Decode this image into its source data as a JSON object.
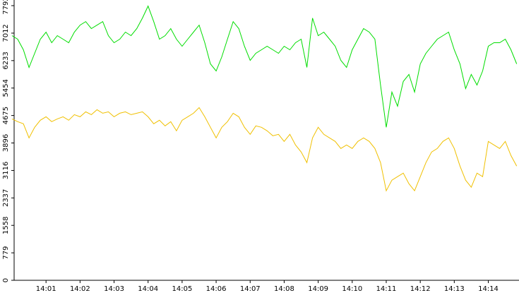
{
  "chart_data": {
    "type": "line",
    "categories": [
      null,
      null,
      null,
      null,
      null,
      null,
      "14:01",
      null,
      null,
      null,
      null,
      null,
      "14:02",
      null,
      null,
      null,
      null,
      null,
      "14:03",
      null,
      null,
      null,
      null,
      null,
      "14:04",
      null,
      null,
      null,
      null,
      null,
      "14:05",
      null,
      null,
      null,
      null,
      null,
      "14:06",
      null,
      null,
      null,
      null,
      null,
      "14:07",
      null,
      null,
      null,
      null,
      null,
      "14:08",
      null,
      null,
      null,
      null,
      null,
      "14:09",
      null,
      null,
      null,
      null,
      null,
      "14:10",
      null,
      null,
      null,
      null,
      null,
      "14:11",
      null,
      null,
      null,
      null,
      null,
      "14:12",
      null,
      null,
      null,
      null,
      null,
      "14:13",
      null,
      null,
      null,
      null,
      null,
      "14:14",
      null,
      null,
      null,
      null,
      null
    ],
    "series": [
      {
        "color": "#00dd00",
        "values": [
          6940,
          6840,
          6540,
          6040,
          6440,
          6840,
          7040,
          6740,
          6940,
          6840,
          6740,
          7040,
          7240,
          7340,
          7140,
          7240,
          7340,
          6940,
          6740,
          6840,
          7040,
          6940,
          7140,
          7440,
          7780,
          7340,
          6840,
          6940,
          7140,
          6840,
          6640,
          6840,
          7040,
          7240,
          6740,
          6140,
          5940,
          6340,
          6840,
          7340,
          7140,
          6640,
          6240,
          6440,
          6540,
          6640,
          6540,
          6440,
          6640,
          6540,
          6740,
          6840,
          6040,
          7440,
          6940,
          7040,
          6840,
          6640,
          6240,
          6040,
          6540,
          6840,
          7140,
          7040,
          6840,
          5540,
          4340,
          5340,
          4940,
          5640,
          5840,
          5340,
          6140,
          6440,
          6640,
          6840,
          6940,
          7040,
          6540,
          6140,
          5440,
          5840,
          5540,
          5940,
          6640,
          6740,
          6740,
          6840,
          6540,
          6140
        ]
      },
      {
        "color": "#f0c000",
        "values": [
          4580,
          4500,
          4440,
          4040,
          4340,
          4540,
          4640,
          4500,
          4580,
          4640,
          4540,
          4700,
          4640,
          4780,
          4700,
          4840,
          4740,
          4780,
          4640,
          4740,
          4780,
          4700,
          4740,
          4780,
          4640,
          4440,
          4540,
          4380,
          4500,
          4240,
          4540,
          4640,
          4740,
          4900,
          4640,
          4340,
          4040,
          4340,
          4500,
          4740,
          4640,
          4340,
          4140,
          4380,
          4340,
          4240,
          4100,
          4140,
          3940,
          4140,
          3840,
          3640,
          3340,
          4040,
          4340,
          4140,
          4040,
          3940,
          3740,
          3840,
          3740,
          3940,
          4040,
          3940,
          3740,
          3340,
          2540,
          2840,
          2940,
          3040,
          2740,
          2540,
          2940,
          3340,
          3640,
          3740,
          3940,
          4040,
          3740,
          3240,
          2840,
          2640,
          3040,
          2940,
          3940,
          3840,
          3740,
          3940,
          3540,
          3240
        ]
      }
    ],
    "ylim": [
      0,
      7792
    ],
    "yticks": [
      0,
      779,
      1558,
      2337,
      3116,
      3896,
      4675,
      5454,
      6233,
      7012,
      7792
    ]
  }
}
